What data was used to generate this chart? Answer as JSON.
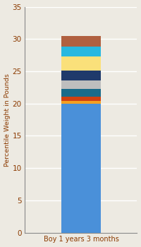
{
  "category": "Boy 1 years 3 months",
  "segments": [
    {
      "value": 20.0,
      "color": "#4A90D9"
    },
    {
      "value": 0.4,
      "color": "#F5A020"
    },
    {
      "value": 0.7,
      "color": "#D04010"
    },
    {
      "value": 1.2,
      "color": "#1A6B8A"
    },
    {
      "value": 1.3,
      "color": "#BEBEBE"
    },
    {
      "value": 1.5,
      "color": "#1F3A6B"
    },
    {
      "value": 2.2,
      "color": "#FAE07A"
    },
    {
      "value": 1.5,
      "color": "#28B8E0"
    },
    {
      "value": 1.7,
      "color": "#B06040"
    }
  ],
  "ylabel": "Percentile Weight in Pounds",
  "ylim": [
    0,
    35
  ],
  "yticks": [
    0,
    5,
    10,
    15,
    20,
    25,
    30,
    35
  ],
  "bg_color": "#EDEAE2",
  "bar_width": 0.35,
  "xlabel_color": "#8B3A00",
  "ylabel_color": "#8B3A00",
  "tick_color": "#8B3A00",
  "grid_color": "#FFFFFF",
  "axes_bg": "#EDEAE2"
}
